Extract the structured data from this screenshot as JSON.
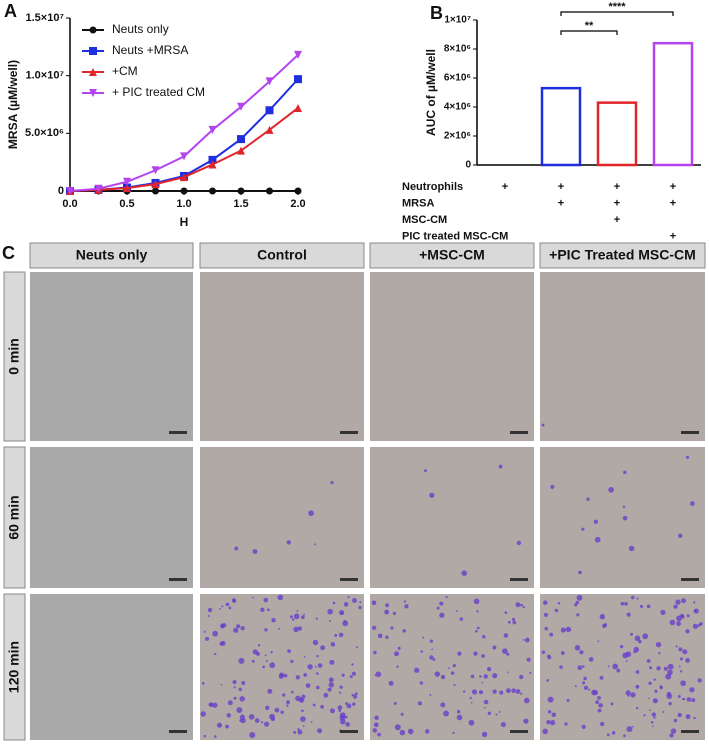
{
  "chart_data": [
    {
      "type": "line",
      "panel": "A",
      "ylabel": "MRSA (µM/well)",
      "xlabel": "H",
      "x": [
        0,
        0.25,
        0.5,
        0.75,
        1,
        1.25,
        1.5,
        1.75,
        2
      ],
      "xlim": [
        0,
        2
      ],
      "xticks": [
        {
          "value": 0,
          "label": "0.0"
        },
        0.5,
        {
          "value": 1,
          "label": "1.0"
        },
        1.5,
        {
          "value": 2,
          "label": "2.0"
        }
      ],
      "ylim": [
        0,
        15000000
      ],
      "yticks": [
        0,
        {
          "value": 5000000,
          "label": "5.0×10⁶"
        },
        {
          "value": 10000000,
          "label": "1.0×10⁷"
        },
        {
          "value": 15000000,
          "label": "1.5×10⁷"
        }
      ],
      "legend": "top-left",
      "series": [
        {
          "name": "Neuts only",
          "color": "#111111",
          "marker": "circle",
          "values": [
            0,
            0,
            0,
            0,
            0,
            0,
            0,
            0,
            0
          ]
        },
        {
          "name": "Neuts +MRSA",
          "color": "#1f2fe0",
          "marker": "square",
          "values": [
            0,
            100000,
            300000,
            700000,
            1300000,
            2700000,
            4500000,
            7000000,
            9700000
          ]
        },
        {
          "name": "+CM",
          "color": "#e0262b",
          "marker": "triangle",
          "values": [
            0,
            100000,
            250000,
            600000,
            1200000,
            2300000,
            3500000,
            5300000,
            7200000
          ]
        },
        {
          "name": "+ PIC treated CM",
          "color": "#b444ee",
          "marker": "triangle-down",
          "values": [
            0,
            200000,
            800000,
            1800000,
            3000000,
            5300000,
            7300000,
            9500000,
            11800000
          ]
        }
      ]
    },
    {
      "type": "bar",
      "panel": "B",
      "ylabel": "AUC of µM/well",
      "categories": [
        null,
        null,
        null,
        null
      ],
      "values": [
        0,
        5300000,
        4300000,
        8400000
      ],
      "colors": [
        "#111111",
        "#1f2fe0",
        "#e0262b",
        "#b444ee"
      ],
      "ylim": [
        0,
        10000000
      ],
      "yticks": [
        0,
        {
          "value": 2000000,
          "label": "2×10⁶"
        },
        {
          "value": 4000000,
          "label": "4×10⁶"
        },
        {
          "value": 6000000,
          "label": "6×10⁶"
        },
        {
          "value": 8000000,
          "label": "8×10⁶"
        },
        {
          "value": 10000000,
          "label": "1×10⁷"
        }
      ],
      "annotations": [
        "****",
        "**"
      ],
      "conditions": [
        {
          "label": "Neutrophils",
          "marks": [
            "+",
            "+",
            "+",
            "+"
          ]
        },
        {
          "label": "MRSA",
          "marks": [
            null,
            "+",
            "+",
            "+"
          ]
        },
        {
          "label": "MSC-CM",
          "marks": [
            null,
            null,
            "+",
            null
          ]
        },
        {
          "label": "PIC treated MSC-CM",
          "marks": [
            null,
            null,
            null,
            "+"
          ]
        }
      ]
    }
  ],
  "panel_c": {
    "label": "C",
    "columns": [
      "Neuts only",
      "Control",
      "+MSC-CM",
      "+PIC Treated MSC-CM"
    ],
    "rows": [
      "0 min",
      "60 min",
      "120 min"
    ]
  }
}
